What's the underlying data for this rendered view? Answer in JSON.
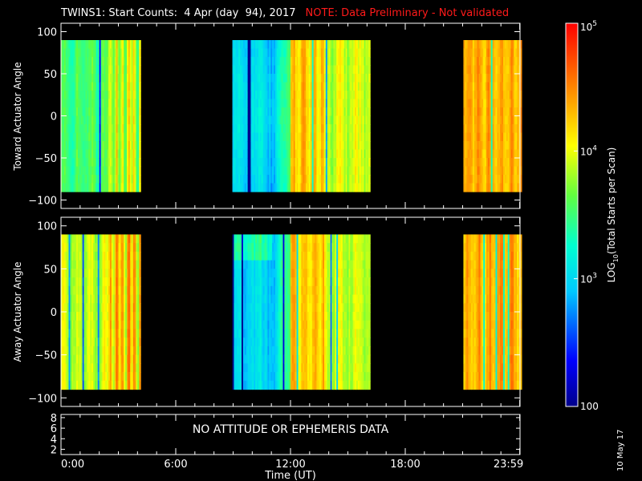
{
  "title": "TWINS1: Start Counts:  4 Apr (day  94), 2017",
  "note": "NOTE: Data Preliminary - Not validated",
  "datestamp": "10 May 17",
  "colors": {
    "background": "#000000",
    "axes": "#ffffff",
    "note": "#ff1a1a"
  },
  "chart_data": [
    {
      "type": "heatmap",
      "panel": "toward",
      "ylabel": "Toward Actuator Angle",
      "ylim": [
        -110,
        110
      ],
      "yticks": [
        100,
        50,
        0,
        -50,
        -100
      ],
      "data_angle_range": [
        -90,
        90
      ],
      "xlim_hours": [
        0,
        24
      ],
      "data_segments_hours": [
        [
          0.0,
          4.2
        ],
        [
          9.0,
          16.2
        ],
        [
          21.0,
          24.0
        ]
      ],
      "colormap": "rainbow",
      "description_of_intensity": "green-yellow in first segment, cyan rising to orange in middle segment, orange-red in last segment"
    },
    {
      "type": "heatmap",
      "panel": "away",
      "ylabel": "Away Actuator Angle",
      "ylim": [
        -110,
        110
      ],
      "yticks": [
        100,
        50,
        0,
        -50,
        -100
      ],
      "data_angle_range": [
        -90,
        90
      ],
      "xlim_hours": [
        0,
        24
      ],
      "data_segments_hours": [
        [
          0.0,
          4.2
        ],
        [
          9.0,
          16.2
        ],
        [
          21.0,
          24.0
        ]
      ],
      "colormap": "rainbow"
    },
    {
      "type": "line",
      "panel": "ephemeris",
      "yticks": [
        8,
        6,
        4,
        2
      ],
      "ylim": [
        1,
        8.6
      ],
      "message": "NO ATTITUDE OR EPHEMERIS DATA",
      "xticks": [
        "0:00",
        "6:00",
        "12:00",
        "18:00",
        "23:59"
      ],
      "xlabel": "Time (UT)"
    },
    {
      "type": "colorbar",
      "label_prefix": "LOG",
      "label_sub": "10",
      "label_suffix": "(Total Starts per Scan)",
      "ticks": [
        {
          "value": 100000,
          "base": "10",
          "exp": "5"
        },
        {
          "value": 10000,
          "base": "10",
          "exp": "4"
        },
        {
          "value": 1000,
          "base": "10",
          "exp": "3"
        },
        {
          "value": 100,
          "base": "100",
          "exp": ""
        }
      ],
      "range": [
        100,
        100000
      ]
    }
  ]
}
